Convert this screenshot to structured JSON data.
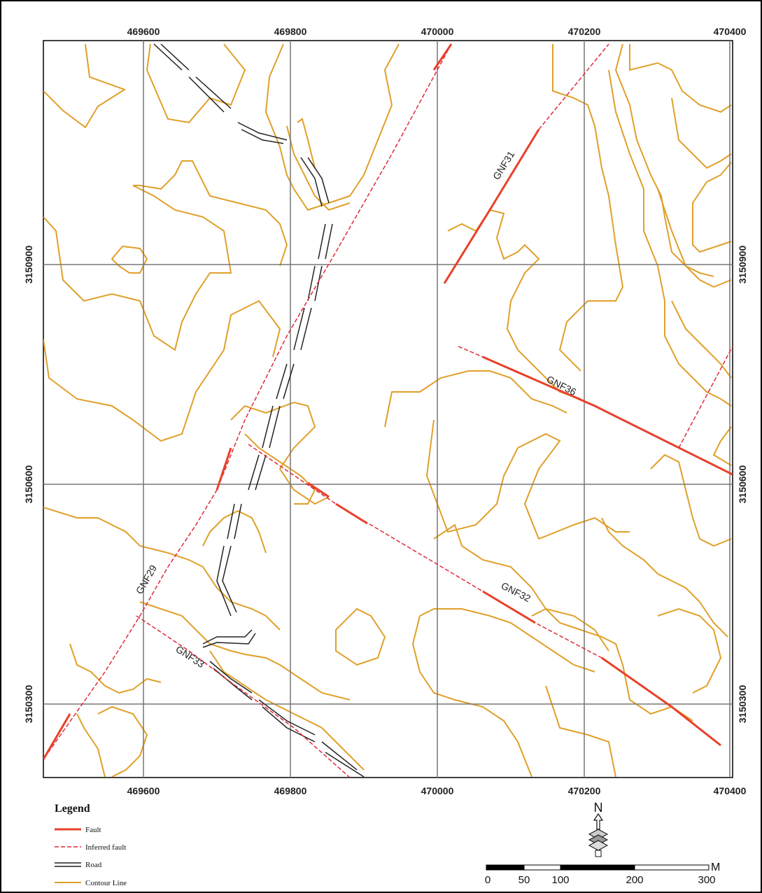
{
  "grid": {
    "x_ticks": [
      "469600",
      "469800",
      "470000",
      "470200",
      "470400"
    ],
    "y_ticks": [
      "3150900",
      "3150600",
      "3150300"
    ]
  },
  "faults": [
    {
      "name": "GNF31"
    },
    {
      "name": "GNF36"
    },
    {
      "name": "GNF29"
    },
    {
      "name": "GNF32"
    },
    {
      "name": "GNF33"
    }
  ],
  "legend": {
    "title": "Legend",
    "items": [
      {
        "label": "Fault"
      },
      {
        "label": "Inferred fault"
      },
      {
        "label": "Road"
      },
      {
        "label": "Contour Line"
      }
    ]
  },
  "north_arrow": {
    "letter": "N"
  },
  "scale_bar": {
    "unit": "M",
    "labels": [
      "0",
      "50",
      "100",
      "200",
      "300"
    ]
  },
  "colors": {
    "fault": "#e8412a",
    "inferred_fault": "#e02a3a",
    "road": "#222222",
    "contour": "#e0a02a",
    "grid": "#777777"
  }
}
